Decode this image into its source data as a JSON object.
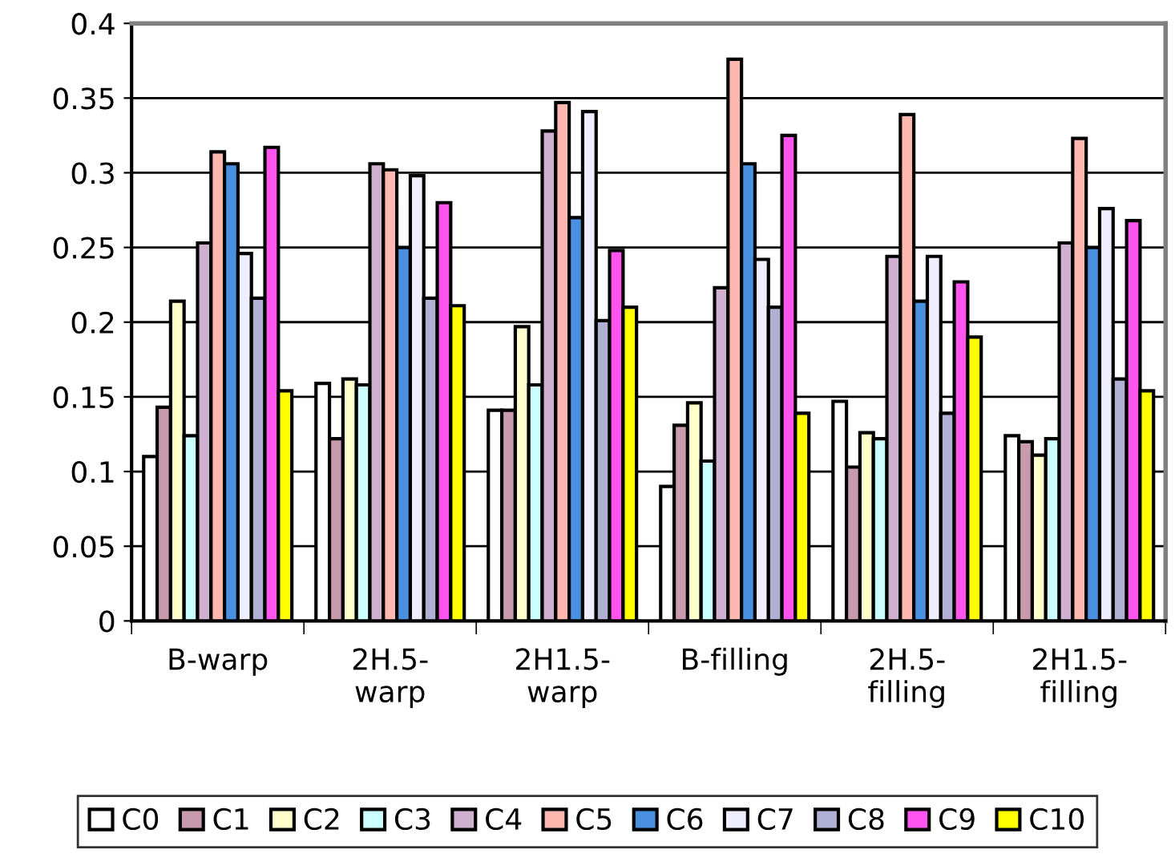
{
  "chart_data": {
    "type": "bar",
    "categories": [
      "B-warp",
      "2H.5-\nwarp",
      "2H1.5-\nwarp",
      "B-filling",
      "2H.5-\nfilling",
      "2H1.5-\nfilling"
    ],
    "series": [
      {
        "name": "C0",
        "color": "#ffffff",
        "values": [
          0.11,
          0.159,
          0.141,
          0.09,
          0.147,
          0.124
        ]
      },
      {
        "name": "C1",
        "color": "#c89aae",
        "values": [
          0.143,
          0.122,
          0.141,
          0.131,
          0.103,
          0.12
        ]
      },
      {
        "name": "C2",
        "color": "#ffffcc",
        "values": [
          0.214,
          0.162,
          0.197,
          0.146,
          0.126,
          0.111
        ]
      },
      {
        "name": "C3",
        "color": "#ccffff",
        "values": [
          0.124,
          0.158,
          0.158,
          0.107,
          0.122,
          0.122
        ]
      },
      {
        "name": "C4",
        "color": "#cfb0d0",
        "values": [
          0.253,
          0.306,
          0.328,
          0.223,
          0.244,
          0.253
        ]
      },
      {
        "name": "C5",
        "color": "#ffb8b0",
        "values": [
          0.314,
          0.302,
          0.347,
          0.376,
          0.339,
          0.323
        ]
      },
      {
        "name": "C6",
        "color": "#4a90e0",
        "values": [
          0.306,
          0.25,
          0.27,
          0.306,
          0.214,
          0.25
        ]
      },
      {
        "name": "C7",
        "color": "#eeeeff",
        "values": [
          0.246,
          0.298,
          0.341,
          0.242,
          0.244,
          0.276
        ]
      },
      {
        "name": "C8",
        "color": "#b0b0d4",
        "values": [
          0.216,
          0.216,
          0.201,
          0.21,
          0.139,
          0.162
        ]
      },
      {
        "name": "C9",
        "color": "#ff55ee",
        "values": [
          0.317,
          0.28,
          0.248,
          0.325,
          0.227,
          0.268
        ]
      },
      {
        "name": "C10",
        "color": "#ffff00",
        "values": [
          0.154,
          0.211,
          0.21,
          0.139,
          0.19,
          0.154
        ]
      }
    ],
    "ylim": [
      0,
      0.4
    ],
    "yticks": [
      {
        "value": 0,
        "label": "0"
      },
      0.05,
      0.1,
      0.15,
      0.2,
      0.25,
      0.3,
      0.35,
      0.4
    ],
    "grid": "y",
    "legend": "bottom"
  }
}
